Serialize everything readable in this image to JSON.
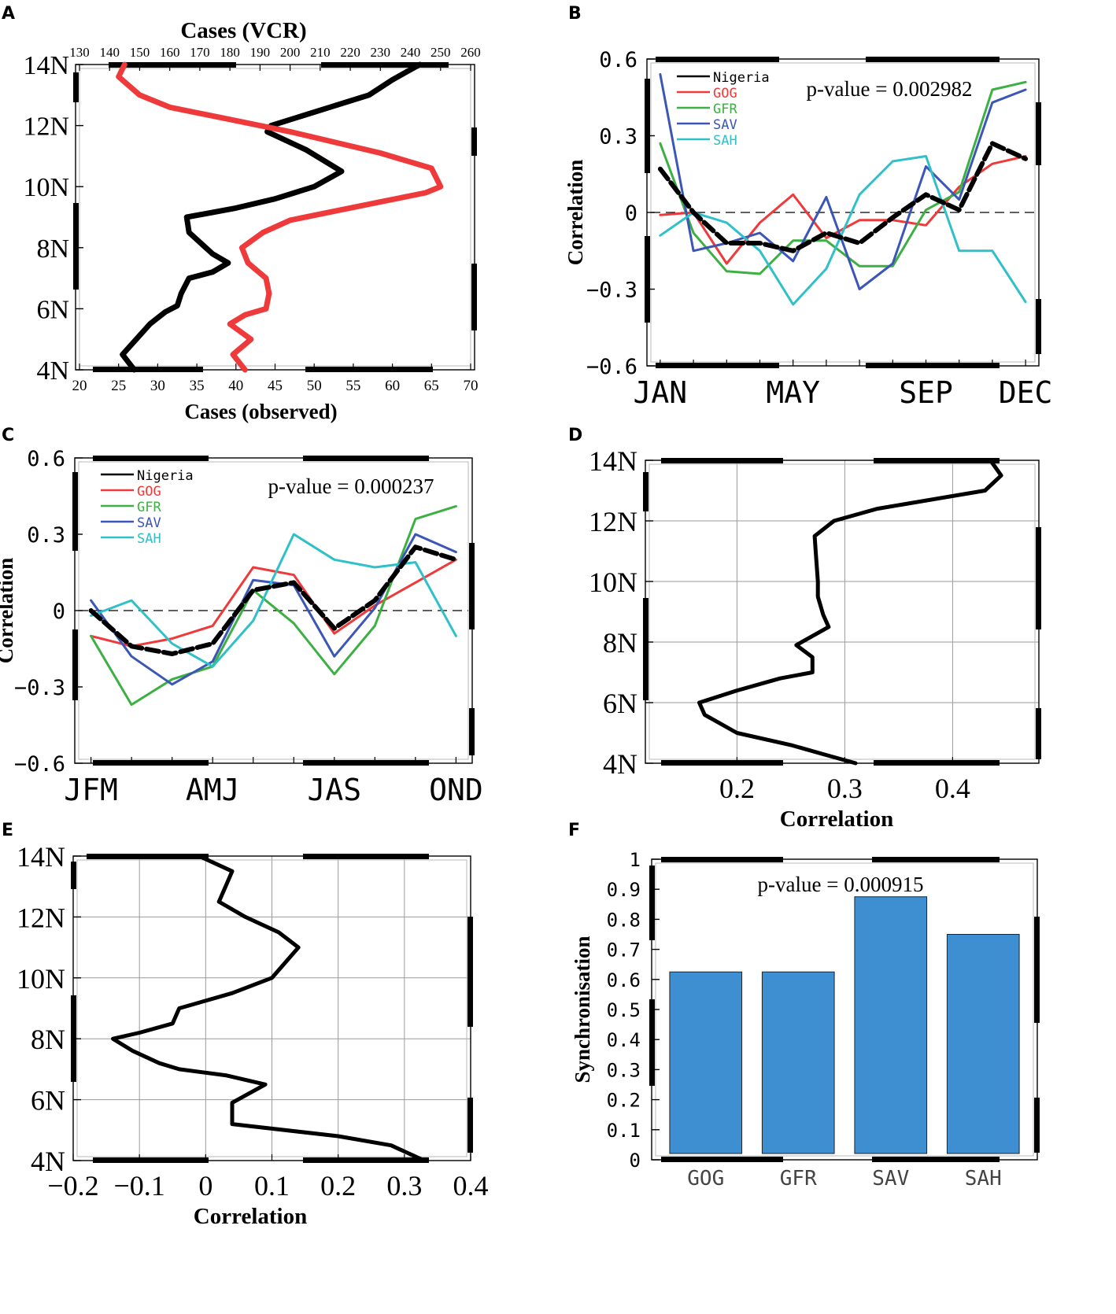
{
  "chart_data": [
    {
      "id": "A",
      "panel_label": "A",
      "type": "line",
      "orientation": "profile",
      "title": "Cases (VCR)",
      "xlabel": "Cases (observed)",
      "top_axis_label": "Cases (VCR)",
      "y_ticks": [
        "4N",
        "6N",
        "8N",
        "10N",
        "12N",
        "14N"
      ],
      "ylim": [
        4,
        14
      ],
      "x_bottom_ticks": [
        "20",
        "25",
        "30",
        "35",
        "40",
        "45",
        "50",
        "55",
        "60",
        "65",
        "70"
      ],
      "xlim_bottom": [
        20,
        70
      ],
      "x_top_ticks": [
        "130",
        "140",
        "150",
        "160",
        "170",
        "180",
        "190",
        "200",
        "210",
        "220",
        "230",
        "240",
        "250",
        "260"
      ],
      "xlim_top": [
        130,
        260
      ],
      "series": [
        {
          "name": "observed",
          "axis": "bottom",
          "color": "#000000",
          "points": [
            [
              27,
              4
            ],
            [
              25.5,
              4.5
            ],
            [
              29,
              5.5
            ],
            [
              31,
              5.9
            ],
            [
              32.5,
              6.1
            ],
            [
              33,
              6.5
            ],
            [
              34,
              7
            ],
            [
              37,
              7.2
            ],
            [
              39,
              7.5
            ],
            [
              37,
              7.8
            ],
            [
              34,
              8.5
            ],
            [
              33.7,
              9
            ],
            [
              40,
              9.3
            ],
            [
              45,
              9.6
            ],
            [
              50,
              10
            ],
            [
              53.5,
              10.5
            ],
            [
              49,
              11.2
            ],
            [
              44,
              11.8
            ],
            [
              44.5,
              12
            ],
            [
              52,
              12.6
            ],
            [
              57,
              13
            ],
            [
              60,
              13.5
            ],
            [
              63.5,
              14
            ]
          ]
        },
        {
          "name": "VCR",
          "axis": "top",
          "color": "#ee3a3a",
          "points": [
            [
              185,
              4
            ],
            [
              181,
              4.5
            ],
            [
              187,
              5
            ],
            [
              180,
              5.5
            ],
            [
              185,
              5.8
            ],
            [
              192,
              6
            ],
            [
              193,
              6.5
            ],
            [
              192,
              7
            ],
            [
              186,
              7.5
            ],
            [
              184,
              8
            ],
            [
              191,
              8.5
            ],
            [
              200,
              8.9
            ],
            [
              215,
              9.2
            ],
            [
              230,
              9.5
            ],
            [
              245,
              9.8
            ],
            [
              250,
              10
            ],
            [
              247,
              10.6
            ],
            [
              230,
              11.1
            ],
            [
              200,
              11.8
            ],
            [
              180,
              12.2
            ],
            [
              160,
              12.6
            ],
            [
              150,
              13
            ],
            [
              143,
              13.6
            ],
            [
              145,
              14
            ]
          ]
        }
      ]
    },
    {
      "id": "B",
      "panel_label": "B",
      "type": "line",
      "ylabel": "Correlation",
      "annotation": "p-value = 0.002982",
      "x_tick_labels": [
        "JAN",
        "MAY",
        "SEP",
        "DEC"
      ],
      "x_tick_positions": [
        1,
        5,
        9,
        12
      ],
      "xlim": [
        0.6,
        12.4
      ],
      "y_ticks": [
        "0.6",
        "0.3",
        "0",
        "−0.3",
        "−0.6"
      ],
      "y_tick_values": [
        0.6,
        0.3,
        0,
        -0.3,
        -0.6
      ],
      "ylim": [
        -0.6,
        0.6
      ],
      "series": [
        {
          "name": "Nigeria",
          "color": "#000000",
          "values": [
            0.17,
            0.0,
            -0.12,
            -0.12,
            -0.15,
            -0.08,
            -0.12,
            -0.02,
            0.07,
            0.01,
            0.27,
            0.21
          ]
        },
        {
          "name": "GOG",
          "color": "#ee3a3a",
          "values": [
            -0.01,
            0.0,
            -0.2,
            -0.04,
            0.07,
            -0.1,
            -0.03,
            -0.03,
            -0.05,
            0.1,
            0.19,
            0.22
          ]
        },
        {
          "name": "GFR",
          "color": "#3cb043",
          "values": [
            0.27,
            -0.08,
            -0.23,
            -0.24,
            -0.11,
            -0.11,
            -0.21,
            -0.21,
            0.01,
            0.08,
            0.48,
            0.51
          ]
        },
        {
          "name": "SAV",
          "color": "#3b56b6",
          "values": [
            0.54,
            -0.15,
            -0.12,
            -0.08,
            -0.19,
            0.06,
            -0.3,
            -0.2,
            0.18,
            0.05,
            0.43,
            0.48
          ]
        },
        {
          "name": "SAH",
          "color": "#2fc0c8",
          "values": [
            -0.09,
            0.0,
            -0.04,
            -0.15,
            -0.36,
            -0.22,
            0.07,
            0.2,
            0.22,
            -0.15,
            -0.15,
            -0.35
          ]
        }
      ]
    },
    {
      "id": "C",
      "panel_label": "C",
      "type": "line",
      "ylabel": "Correlation",
      "annotation": "p-value = 0.000237",
      "x_tick_labels": [
        "JFM",
        "AMJ",
        "JAS",
        "OND"
      ],
      "x_tick_positions": [
        1,
        4,
        7,
        10
      ],
      "xlim": [
        0.6,
        10.4
      ],
      "y_ticks": [
        "0.6",
        "0.3",
        "0",
        "−0.3",
        "−0.6"
      ],
      "y_tick_values": [
        0.6,
        0.3,
        0,
        -0.3,
        -0.6
      ],
      "ylim": [
        -0.6,
        0.6
      ],
      "series": [
        {
          "name": "Nigeria",
          "color": "#000000",
          "values": [
            0.0,
            -0.14,
            -0.17,
            -0.13,
            0.08,
            0.11,
            -0.07,
            0.04,
            0.25,
            0.2
          ]
        },
        {
          "name": "GOG",
          "color": "#ee3a3a",
          "values": [
            -0.1,
            -0.14,
            -0.11,
            -0.06,
            0.17,
            0.14,
            -0.09,
            0.02,
            0.11,
            0.2
          ]
        },
        {
          "name": "GFR",
          "color": "#3cb043",
          "values": [
            -0.1,
            -0.37,
            -0.27,
            -0.22,
            0.08,
            -0.05,
            -0.25,
            -0.06,
            0.36,
            0.41
          ]
        },
        {
          "name": "SAV",
          "color": "#3b56b6",
          "values": [
            0.04,
            -0.18,
            -0.29,
            -0.2,
            0.12,
            0.1,
            -0.18,
            0.01,
            0.3,
            0.23
          ]
        },
        {
          "name": "SAH",
          "color": "#2fc0c8",
          "values": [
            -0.02,
            0.04,
            -0.13,
            -0.22,
            -0.04,
            0.3,
            0.2,
            0.17,
            0.19,
            -0.1
          ]
        }
      ]
    },
    {
      "id": "D",
      "panel_label": "D",
      "type": "line",
      "orientation": "profile",
      "xlabel": "Correlation",
      "x_ticks": [
        "0.2",
        "0.3",
        "0.4"
      ],
      "x_tick_values": [
        0.2,
        0.3,
        0.4
      ],
      "xlim": [
        0.115,
        0.48
      ],
      "y_ticks": [
        "4N",
        "6N",
        "8N",
        "10N",
        "12N",
        "14N"
      ],
      "ylim": [
        4,
        14
      ],
      "grid": true,
      "series": [
        {
          "name": "Nigeria",
          "color": "#000000",
          "points": [
            [
              0.31,
              4
            ],
            [
              0.28,
              4.3
            ],
            [
              0.25,
              4.6
            ],
            [
              0.2,
              5
            ],
            [
              0.17,
              5.6
            ],
            [
              0.165,
              6
            ],
            [
              0.2,
              6.4
            ],
            [
              0.24,
              6.8
            ],
            [
              0.27,
              7
            ],
            [
              0.27,
              7.5
            ],
            [
              0.255,
              7.9
            ],
            [
              0.285,
              8.5
            ],
            [
              0.28,
              8.9
            ],
            [
              0.275,
              9.5
            ],
            [
              0.275,
              10
            ],
            [
              0.273,
              11
            ],
            [
              0.272,
              11.5
            ],
            [
              0.29,
              12
            ],
            [
              0.33,
              12.4
            ],
            [
              0.43,
              13
            ],
            [
              0.445,
              13.5
            ],
            [
              0.435,
              14
            ]
          ]
        }
      ]
    },
    {
      "id": "E",
      "panel_label": "E",
      "type": "line",
      "orientation": "profile",
      "xlabel": "Correlation",
      "x_ticks": [
        "−0.2",
        "−0.1",
        "0",
        "0.1",
        "0.2",
        "0.3",
        "0.4"
      ],
      "x_tick_values": [
        -0.2,
        -0.1,
        0,
        0.1,
        0.2,
        0.3,
        0.4
      ],
      "xlim": [
        -0.2,
        0.4
      ],
      "y_ticks": [
        "4N",
        "6N",
        "8N",
        "10N",
        "12N",
        "14N"
      ],
      "ylim": [
        4,
        14
      ],
      "grid": true,
      "series": [
        {
          "name": "Nigeria",
          "color": "#000000",
          "points": [
            [
              0.33,
              4
            ],
            [
              0.28,
              4.5
            ],
            [
              0.2,
              4.8
            ],
            [
              0.04,
              5.2
            ],
            [
              0.04,
              5.9
            ],
            [
              0.09,
              6.5
            ],
            [
              0.03,
              6.8
            ],
            [
              -0.04,
              7
            ],
            [
              -0.07,
              7.2
            ],
            [
              -0.11,
              7.6
            ],
            [
              -0.14,
              8
            ],
            [
              -0.1,
              8.2
            ],
            [
              -0.05,
              8.5
            ],
            [
              -0.04,
              9
            ],
            [
              0.04,
              9.5
            ],
            [
              0.1,
              10
            ],
            [
              0.14,
              11
            ],
            [
              0.11,
              11.5
            ],
            [
              0.06,
              12
            ],
            [
              0.02,
              12.5
            ],
            [
              0.03,
              13
            ],
            [
              0.04,
              13.5
            ],
            [
              -0.01,
              14
            ]
          ]
        }
      ]
    },
    {
      "id": "F",
      "panel_label": "F",
      "type": "bar",
      "ylabel": "Synchronisation",
      "annotation": "p-value = 0.000915",
      "categories": [
        "GOG",
        "GFR",
        "SAV",
        "SAH"
      ],
      "values": [
        0.625,
        0.625,
        0.875,
        0.75
      ],
      "y_ticks": [
        "0",
        "0.1",
        "0.2",
        "0.3",
        "0.4",
        "0.5",
        "0.6",
        "0.7",
        "0.8",
        "0.9",
        "1"
      ],
      "ylim": [
        0,
        1
      ],
      "bar_color": "#3d8fd1"
    }
  ]
}
